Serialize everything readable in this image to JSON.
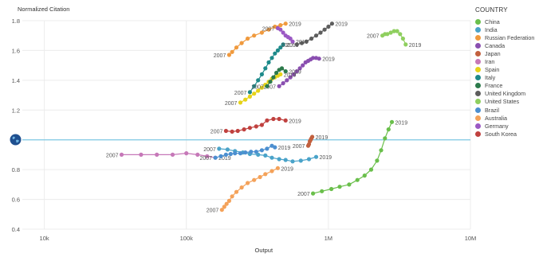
{
  "chart_data": {
    "type": "scatter",
    "title": "",
    "ylabel": "Normalized Citation",
    "xlabel": "Output",
    "x_scale": "log",
    "xlim": [
      7000,
      10000000
    ],
    "ylim": [
      0.4,
      1.8
    ],
    "x_ticks": [
      {
        "value": 10000,
        "label": "10k"
      },
      {
        "value": 100000,
        "label": "100k"
      },
      {
        "value": 1000000,
        "label": "1M"
      },
      {
        "value": 10000000,
        "label": "10M"
      }
    ],
    "y_ticks": [
      {
        "value": 0.4,
        "label": "0.4"
      },
      {
        "value": 0.6,
        "label": "0.6"
      },
      {
        "value": 0.8,
        "label": "0.8"
      },
      {
        "value": 1.0,
        "label": "1"
      },
      {
        "value": 1.2,
        "label": "1.2"
      },
      {
        "value": 1.4,
        "label": "1.4"
      },
      {
        "value": 1.6,
        "label": "1.6"
      },
      {
        "value": 1.8,
        "label": "1.8"
      }
    ],
    "reference_line": {
      "y": 1.0,
      "color": "#7ec8e3"
    },
    "grid": true,
    "legend": {
      "title": "COUNTRY",
      "position": "right"
    },
    "series": [
      {
        "name": "China",
        "color": "#6abf4b",
        "x": [
          780000,
          900000,
          1050000,
          1200000,
          1400000,
          1600000,
          1800000,
          2000000,
          2200000,
          2350000,
          2500000,
          2650000,
          2800000
        ],
        "y": [
          0.64,
          0.655,
          0.67,
          0.685,
          0.7,
          0.73,
          0.76,
          0.8,
          0.86,
          0.93,
          1.01,
          1.07,
          1.12
        ],
        "start_label": "2007",
        "end_label": "2019"
      },
      {
        "name": "India",
        "color": "#4aa3c9",
        "x": [
          170000,
          195000,
          220000,
          250000,
          280000,
          320000,
          360000,
          400000,
          450000,
          500000,
          560000,
          640000,
          730000,
          820000
        ],
        "y": [
          0.94,
          0.935,
          0.925,
          0.915,
          0.905,
          0.9,
          0.895,
          0.88,
          0.87,
          0.865,
          0.855,
          0.86,
          0.87,
          0.885
        ],
        "start_label": "2007",
        "end_label": "2019"
      },
      {
        "name": "Russian Federation",
        "color": "#f09a3e",
        "x": [
          200000,
          210000,
          225000,
          245000,
          270000,
          300000,
          340000,
          380000,
          420000,
          460000,
          500000
        ],
        "y": [
          1.57,
          1.59,
          1.62,
          1.65,
          1.68,
          1.7,
          1.72,
          1.74,
          1.76,
          1.77,
          1.78
        ],
        "start_label": "2007",
        "end_label": "2019"
      },
      {
        "name": "Canada",
        "color": "#8a4fb0",
        "x": [
          450000,
          480000,
          510000,
          540000,
          570000,
          600000,
          630000,
          660000,
          690000,
          720000,
          750000,
          780000,
          820000,
          860000
        ],
        "y": [
          1.36,
          1.38,
          1.4,
          1.42,
          1.44,
          1.46,
          1.48,
          1.5,
          1.52,
          1.53,
          1.54,
          1.55,
          1.55,
          1.545
        ],
        "start_label": "2007",
        "end_label": "2019"
      },
      {
        "name": "Japan",
        "color": "#c2603e",
        "x": [
          720000,
          730000,
          740000,
          750000,
          760000,
          770000
        ],
        "y": [
          0.96,
          0.97,
          0.99,
          1.0,
          1.01,
          1.02
        ],
        "start_label": "2007",
        "end_label": "2019"
      },
      {
        "name": "Iran",
        "color": "#c678b8",
        "x": [
          35000,
          48000,
          62000,
          80000,
          100000,
          120000,
          140000,
          160000
        ],
        "y": [
          0.9,
          0.9,
          0.9,
          0.9,
          0.91,
          0.9,
          0.89,
          0.88
        ],
        "start_label": "2007",
        "end_label": "2019"
      },
      {
        "name": "Spain",
        "color": "#e6d31a",
        "x": [
          240000,
          260000,
          280000,
          300000,
          320000,
          340000,
          360000,
          380000,
          400000,
          420000,
          440000,
          460000
        ],
        "y": [
          1.25,
          1.27,
          1.29,
          1.31,
          1.33,
          1.35,
          1.37,
          1.39,
          1.41,
          1.42,
          1.43,
          1.44
        ],
        "start_label": "2007",
        "end_label": "2019"
      },
      {
        "name": "Italy",
        "color": "#1d8a8a",
        "x": [
          280000,
          300000,
          320000,
          340000,
          360000,
          380000,
          400000,
          420000,
          440000,
          460000,
          480000
        ],
        "y": [
          1.32,
          1.36,
          1.4,
          1.44,
          1.48,
          1.52,
          1.55,
          1.58,
          1.6,
          1.62,
          1.64
        ],
        "start_label": "2007",
        "end_label": "2019"
      },
      {
        "name": "France",
        "color": "#2c7a4b",
        "x": [
          370000,
          390000,
          410000,
          430000,
          450000,
          470000,
          500000
        ],
        "y": [
          1.36,
          1.39,
          1.42,
          1.45,
          1.47,
          1.48,
          1.46
        ],
        "start_label": "2007",
        "end_label": "2019"
      },
      {
        "name": "United Kingdom",
        "color": "#5d5d5d",
        "x": [
          600000,
          650000,
          700000,
          760000,
          820000,
          880000,
          940000,
          1000000,
          1060000
        ],
        "y": [
          1.64,
          1.65,
          1.66,
          1.68,
          1.7,
          1.72,
          1.74,
          1.76,
          1.78
        ],
        "start_label": "2007",
        "end_label": "2019"
      },
      {
        "name": "United States",
        "color": "#8fcf5f",
        "x": [
          2400000,
          2500000,
          2600000,
          2750000,
          2900000,
          3050000,
          3200000,
          3350000,
          3500000
        ],
        "y": [
          1.7,
          1.71,
          1.71,
          1.72,
          1.73,
          1.73,
          1.71,
          1.68,
          1.64
        ],
        "start_label": "2007",
        "end_label": "2019"
      },
      {
        "name": "Brazil",
        "color": "#4c8fd0",
        "x": [
          160000,
          175000,
          190000,
          205000,
          220000,
          240000,
          260000,
          285000,
          310000,
          340000,
          370000,
          400000,
          420000
        ],
        "y": [
          0.88,
          0.89,
          0.9,
          0.905,
          0.91,
          0.91,
          0.915,
          0.92,
          0.92,
          0.93,
          0.94,
          0.96,
          0.95
        ],
        "start_label": "2007",
        "end_label": "2019"
      },
      {
        "name": "Australia",
        "color": "#f4a25a",
        "x": [
          178000,
          185000,
          192000,
          200000,
          210000,
          225000,
          245000,
          270000,
          300000,
          330000,
          360000,
          400000,
          440000
        ],
        "y": [
          0.53,
          0.55,
          0.57,
          0.59,
          0.62,
          0.65,
          0.68,
          0.71,
          0.73,
          0.75,
          0.77,
          0.79,
          0.81
        ],
        "start_label": "2007",
        "end_label": "2019"
      },
      {
        "name": "Germany",
        "color": "#9b59c4",
        "x": [
          440000,
          460000,
          480000,
          500000,
          520000,
          540000,
          560000
        ],
        "y": [
          1.75,
          1.74,
          1.72,
          1.7,
          1.69,
          1.68,
          1.66
        ],
        "start_label": "2007",
        "end_label": "2019"
      },
      {
        "name": "South Korea",
        "color": "#c0413f",
        "x": [
          190000,
          210000,
          230000,
          255000,
          280000,
          310000,
          340000,
          370000,
          410000,
          450000,
          500000
        ],
        "y": [
          1.06,
          1.055,
          1.06,
          1.07,
          1.08,
          1.09,
          1.1,
          1.13,
          1.14,
          1.14,
          1.13
        ],
        "start_label": "2007",
        "end_label": "2019"
      }
    ]
  }
}
